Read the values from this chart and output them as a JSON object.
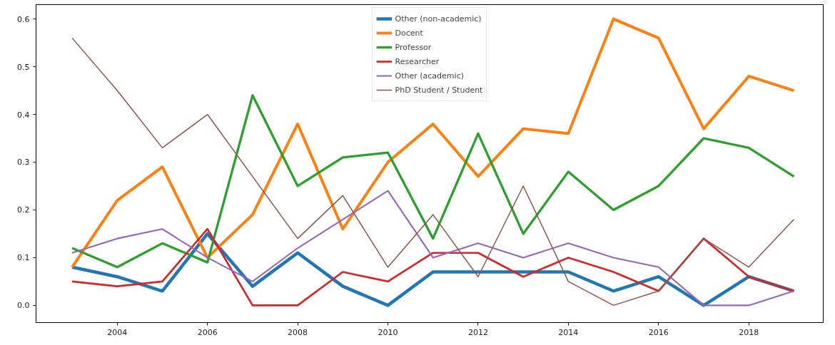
{
  "chart_data": {
    "type": "line",
    "x": [
      2003,
      2004,
      2005,
      2006,
      2007,
      2008,
      2009,
      2010,
      2011,
      2012,
      2013,
      2014,
      2015,
      2016,
      2017,
      2018,
      2019
    ],
    "series": [
      {
        "name": "Other (non-academic)",
        "color": "#1f77b4",
        "values": [
          0.08,
          0.06,
          0.03,
          0.15,
          0.04,
          0.11,
          0.04,
          0,
          0.07,
          0.07,
          0.07,
          0.07,
          0.03,
          0.06,
          0,
          0.06,
          0.03
        ]
      },
      {
        "name": "Docent",
        "color": "#ff7f0e",
        "values": [
          0.08,
          0.22,
          0.29,
          0.1,
          0.19,
          0.38,
          0.16,
          0.3,
          0.38,
          0.27,
          0.37,
          0.36,
          0.6,
          0.56,
          0.37,
          0.48,
          0.45
        ]
      },
      {
        "name": "Professor",
        "color": "#2ca02c",
        "values": [
          0.12,
          0.08,
          0.13,
          0.09,
          0.44,
          0.25,
          0.31,
          0.32,
          0.14,
          0.36,
          0.15,
          0.28,
          0.2,
          0.25,
          0.35,
          0.33,
          0.27
        ]
      },
      {
        "name": "Researcher",
        "color": "#d62728",
        "values": [
          0.05,
          0.04,
          0.05,
          0.16,
          0,
          0,
          0.07,
          0.05,
          0.11,
          0.11,
          0.06,
          0.1,
          0.07,
          0.03,
          0.14,
          0.06,
          0.03
        ]
      },
      {
        "name": "Other (academic)",
        "color": "#9467bd",
        "values": [
          0.11,
          0.14,
          0.16,
          0.1,
          0.05,
          0.12,
          0.18,
          0.24,
          0.1,
          0.13,
          0.1,
          0.13,
          0.1,
          0.08,
          0,
          0,
          0.03
        ]
      },
      {
        "name": "PhD Student / Student",
        "color": "#8c564b",
        "values": [
          0.56,
          0.45,
          0.33,
          0.4,
          0.27,
          0.14,
          0.23,
          0.08,
          0.19,
          0.06,
          0.25,
          0.05,
          0,
          0.03,
          0.14,
          0.08,
          0.18
        ]
      }
    ],
    "xlim": [
      2002.2,
      2019.65
    ],
    "xticks": [
      2004,
      2006,
      2008,
      2010,
      2012,
      2014,
      2016,
      2018
    ],
    "ylim": [
      -0.036,
      0.63
    ],
    "yticks": [
      {
        "value": 0,
        "label": "0.0"
      },
      0.1,
      0.2,
      0.3,
      0.4,
      0.5,
      0.6
    ],
    "grid": false,
    "legend": "top",
    "marker": "none",
    "line_style": "solid"
  }
}
